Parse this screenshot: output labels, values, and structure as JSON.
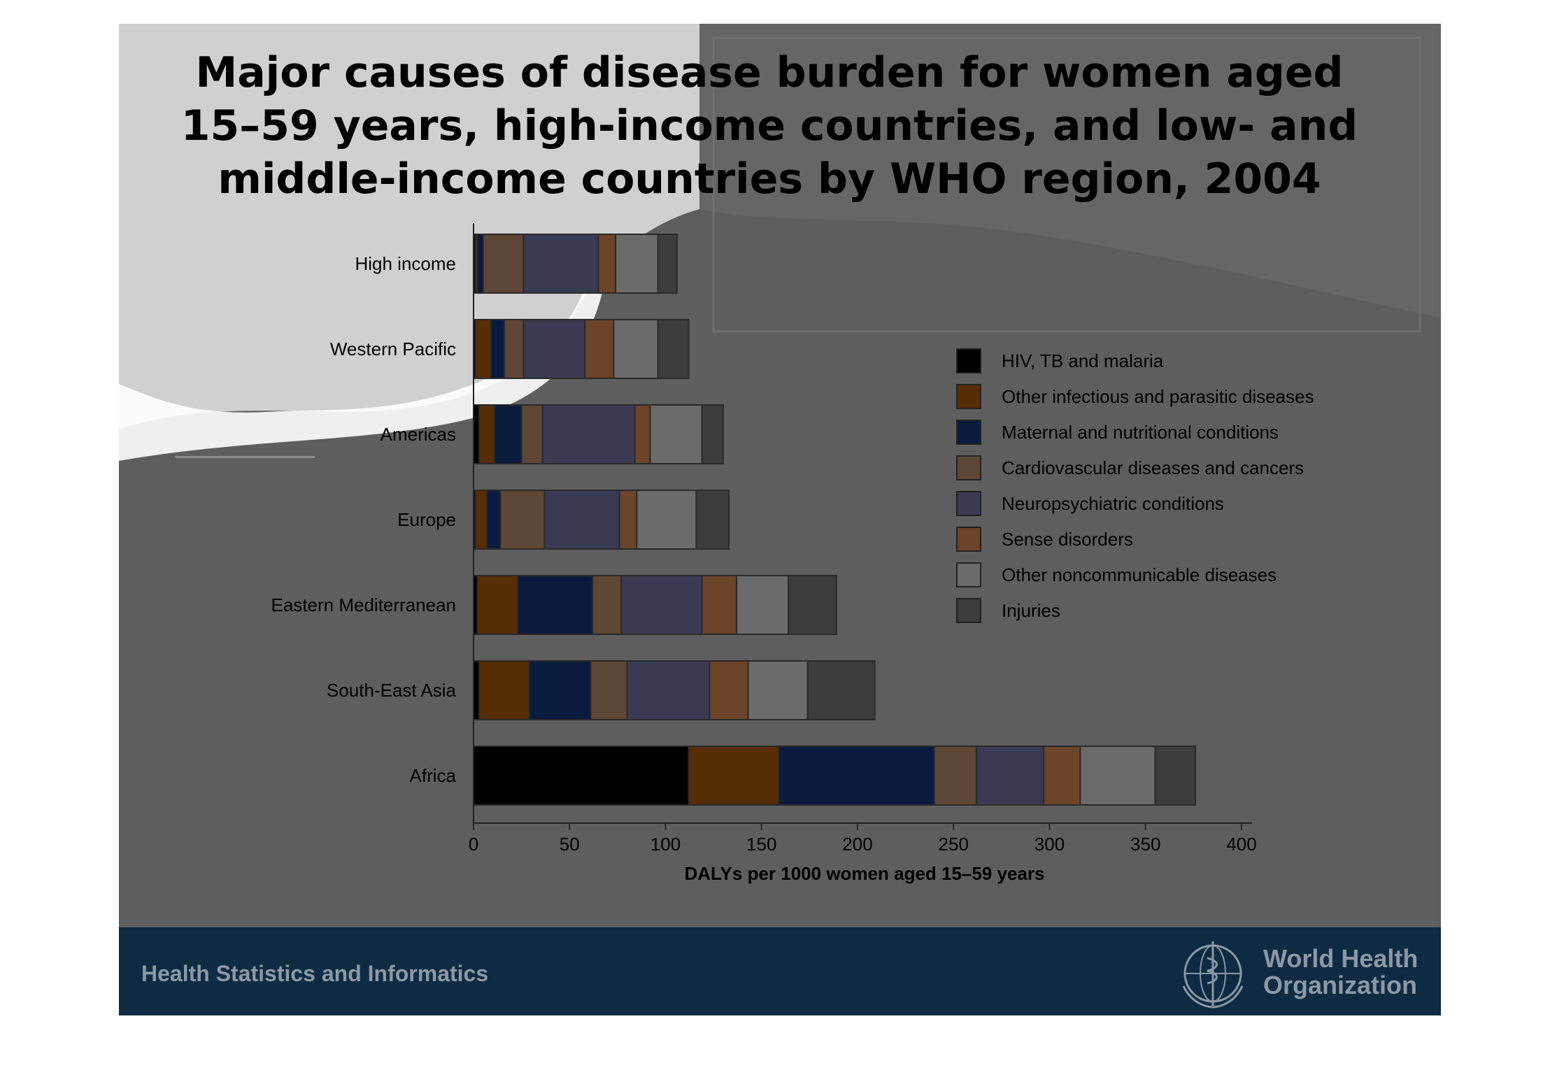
{
  "chart_data": {
    "type": "bar",
    "orientation": "horizontal",
    "stacked": true,
    "title_lines": [
      "Major causes of disease burden for women aged",
      "15–59 years, high-income countries, and low- and",
      "middle-income countries by WHO region, 2004"
    ],
    "xlabel": "DALYs per 1000 women aged 15–59 years",
    "xlim": [
      0,
      400
    ],
    "xticks": [
      0,
      50,
      100,
      150,
      200,
      250,
      300,
      350,
      400
    ],
    "categories": [
      "High income",
      "Western Pacific",
      "Americas",
      "Europe",
      "Eastern Mediterranean",
      "South-East Asia",
      "Africa"
    ],
    "series": [
      {
        "name": "HIV, TB and malaria",
        "color": "#000000",
        "values": [
          1,
          1,
          3,
          1,
          2,
          3,
          112
        ]
      },
      {
        "name": "Other infectious and parasitic diseases",
        "color": "#572d06",
        "values": [
          1,
          8,
          8,
          6,
          21,
          26,
          47
        ]
      },
      {
        "name": "Maternal and nutritional conditions",
        "color": "#0a1b3e",
        "values": [
          3,
          7,
          14,
          7,
          39,
          32,
          81
        ]
      },
      {
        "name": "Cardiovascular diseases and cancers",
        "color": "#5e4636",
        "values": [
          21,
          10,
          11,
          23,
          15,
          19,
          22
        ]
      },
      {
        "name": "Neuropsychiatric conditions",
        "color": "#3a3a52",
        "values": [
          39,
          32,
          48,
          39,
          42,
          43,
          35
        ]
      },
      {
        "name": "Sense disorders",
        "color": "#6b4429",
        "values": [
          9,
          15,
          8,
          9,
          18,
          20,
          19
        ]
      },
      {
        "name": "Other noncommunicable diseases",
        "color": "#6b6b6b",
        "values": [
          22,
          23,
          27,
          31,
          27,
          31,
          39
        ]
      },
      {
        "name": "Injuries",
        "color": "#3c3c3c",
        "values": [
          10,
          16,
          11,
          17,
          25,
          35,
          21
        ]
      }
    ],
    "legend_position": "right",
    "grid": false
  },
  "footer": {
    "division": "Health Statistics and Informatics",
    "org_line1": "World Health",
    "org_line2": "Organization"
  },
  "colors": {
    "slide_background": "#5e5e5e",
    "footer_background": "#0e2b43",
    "footer_text": "#8b99a6"
  },
  "icons": {
    "logo": "who-emblem-icon"
  }
}
